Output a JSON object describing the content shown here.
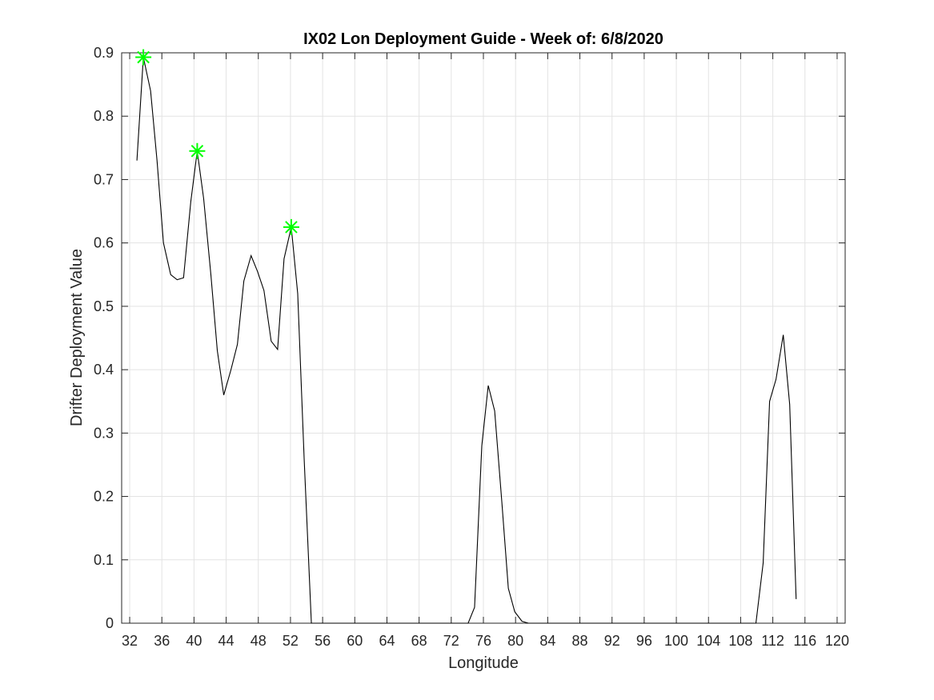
{
  "chart_data": {
    "type": "line",
    "title": "IX02 Lon Deployment Guide - Week of: 6/8/2020",
    "xlabel": "Longitude",
    "ylabel": "Drifter Deployment Value",
    "xlim": [
      31,
      121
    ],
    "ylim": [
      0,
      0.9
    ],
    "xticks": [
      32,
      36,
      40,
      44,
      48,
      52,
      56,
      60,
      64,
      68,
      72,
      76,
      80,
      84,
      88,
      92,
      96,
      100,
      104,
      108,
      112,
      116,
      120
    ],
    "yticks": [
      0,
      0.1,
      0.2,
      0.3,
      0.4,
      0.5,
      0.6,
      0.7,
      0.8,
      0.9
    ],
    "ytick_labels": [
      "0",
      "0.1",
      "0.2",
      "0.3",
      "0.4",
      "0.5",
      "0.6",
      "0.7",
      "0.8",
      "0.9"
    ],
    "grid": true,
    "line_color": "#000000",
    "marker_color": "#00ff00",
    "series": [
      {
        "x": [
          32.9,
          33.7,
          34.6,
          35.4,
          36.2,
          37.1,
          37.9,
          38.7,
          39.6,
          40.4,
          41.2,
          42.1,
          42.9,
          43.7,
          44.6,
          45.4,
          46.2,
          47.1,
          47.9,
          48.7,
          49.6,
          50.4,
          51.2,
          52.1,
          52.9,
          53.7,
          54.6,
          55.4,
          74.1,
          74.9,
          75.8,
          76.6,
          77.4,
          78.3,
          79.1,
          79.9,
          80.8,
          81.6,
          82.4,
          83.3,
          109.9,
          110.8,
          111.6,
          112.4,
          113.3,
          114.1,
          114.9
        ],
        "y": [
          0.73,
          0.893,
          0.84,
          0.73,
          0.6,
          0.55,
          0.542,
          0.545,
          0.665,
          0.745,
          0.67,
          0.55,
          0.43,
          0.36,
          0.4,
          0.44,
          0.54,
          0.58,
          0.555,
          0.525,
          0.445,
          0.432,
          0.575,
          0.625,
          0.52,
          0.26,
          0.0,
          0.0,
          0.0,
          0.025,
          0.28,
          0.375,
          0.335,
          0.19,
          0.055,
          0.018,
          0.003,
          0.0,
          0.0,
          0.0,
          0.0,
          0.095,
          0.35,
          0.385,
          0.455,
          0.345,
          0.038
        ]
      }
    ],
    "markers": [
      {
        "x": 33.7,
        "y": 0.893
      },
      {
        "x": 40.4,
        "y": 0.745
      },
      {
        "x": 52.1,
        "y": 0.625
      }
    ]
  }
}
